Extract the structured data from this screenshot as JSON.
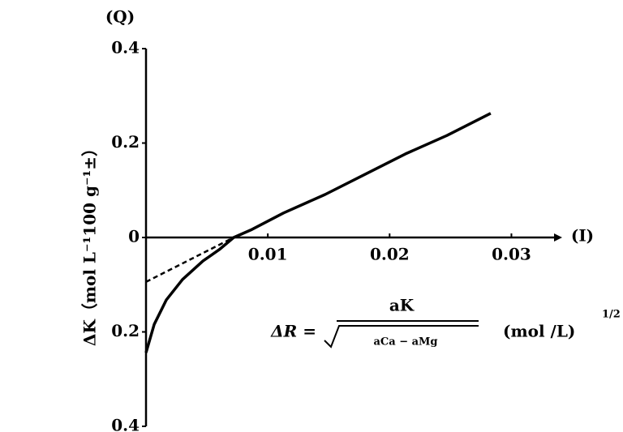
{
  "chart_data": {
    "type": "line",
    "y_axis_label": "ΔK（mol L⁻¹100 g⁻¹±）",
    "y_axis_title": "(Q)",
    "x_axis_title": "(I)",
    "annotations": [
      "ΔR =",
      "aK",
      "aCa − aMg",
      "(mol /L)",
      "1/2"
    ],
    "series": [
      {
        "color": "#000000",
        "style": "solid",
        "x": [
          0,
          0.00067,
          0.00167,
          0.003,
          0.00467,
          0.006,
          0.0072,
          0.0087,
          0.0113,
          0.0147,
          0.018,
          0.0213,
          0.0247,
          0.0283
        ],
        "values": [
          -0.244,
          -0.184,
          -0.132,
          -0.089,
          -0.05,
          -0.026,
          0,
          0.017,
          0.052,
          0.091,
          0.134,
          0.177,
          0.216,
          0.263
        ]
      },
      {
        "color": "#000000",
        "style": "dashed",
        "x": [
          0,
          0.0072
        ],
        "values": [
          -0.094,
          0
        ]
      }
    ],
    "xlim": [
      0,
      0.0335
    ],
    "ylim": [
      -0.4,
      0.4
    ],
    "xticks": [
      0.01,
      0.02,
      0.03
    ],
    "yticks": [
      {
        "value": -0.4,
        "label": "0.4"
      },
      {
        "value": -0.2,
        "label": "0.2"
      },
      0,
      0.2,
      0.4
    ],
    "grid": false
  }
}
